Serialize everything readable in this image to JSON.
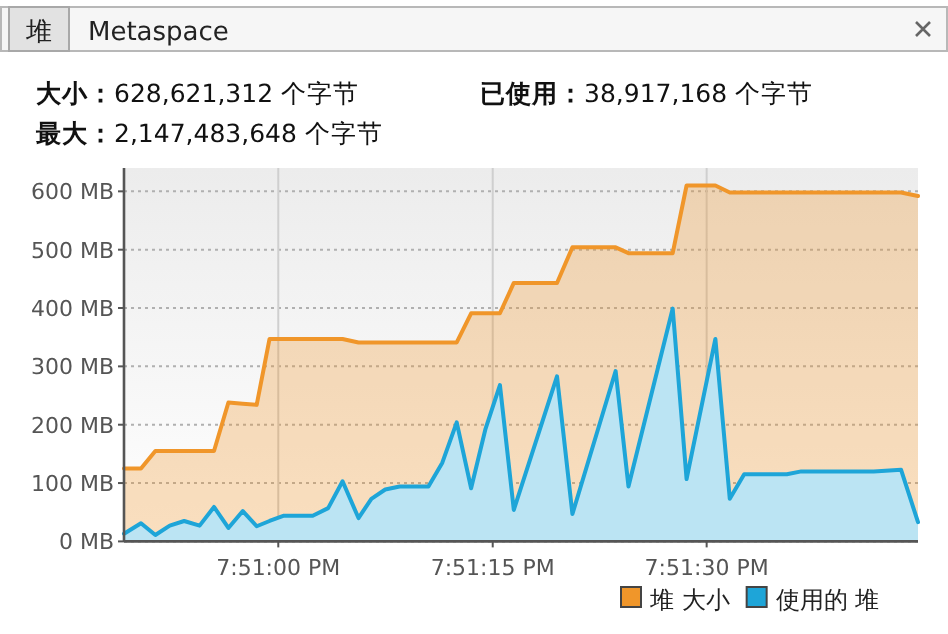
{
  "chart_data": {
    "type": "area",
    "annotations": [
      "堆",
      "Metaspace",
      "大小：628,621,312 个字节",
      "已使用：38,917,168 个字节",
      "最大：2,147,483,648 个字节"
    ],
    "x": [
      19.847,
      19.84733,
      19.84761,
      19.84789,
      19.84817,
      19.84847,
      19.84875,
      19.84903,
      19.84931,
      19.84958,
      19.84983,
      19.85011,
      19.85067,
      19.85097,
      19.85125,
      19.85156,
      19.85181,
      19.85208,
      19.85236,
      19.85292,
      19.85319,
      19.85347,
      19.85375,
      19.85403,
      19.85431,
      19.85458,
      19.85542,
      19.85572,
      19.85656,
      19.85681,
      19.85767,
      19.85794,
      19.8585,
      19.85878,
      19.85906,
      19.85989,
      19.86017,
      19.86158,
      19.86211,
      19.86244
    ],
    "series": [
      {
        "name": "堆 大小",
        "color": "#f0962a",
        "values": [
          125,
          125,
          155,
          155,
          155,
          155,
          155,
          238,
          236,
          234,
          347,
          347,
          347,
          347,
          347,
          341,
          341,
          341,
          341,
          341,
          341,
          341,
          391,
          391,
          391,
          443,
          443,
          504,
          504,
          494,
          494,
          610,
          610,
          598,
          598,
          598,
          598,
          598,
          598,
          592
        ]
      },
      {
        "name": "使用的 堆",
        "color": "#1ea5d8",
        "values": [
          13,
          31,
          11,
          27,
          35,
          27,
          59,
          23,
          52,
          26,
          35,
          44,
          44,
          57,
          103,
          40,
          73,
          89,
          94,
          94,
          135,
          204,
          91,
          193,
          268,
          54,
          283,
          47,
          292,
          94,
          399,
          107,
          347,
          73,
          115,
          115,
          120,
          120,
          123,
          33
        ]
      }
    ],
    "xlim": [
      19.847,
      19.86244
    ],
    "xticks": [
      {
        "value": 19.85,
        "label": "7:51:00 PM"
      },
      {
        "value": 19.85417,
        "label": "7:51:15 PM"
      },
      {
        "value": 19.85833,
        "label": "7:51:30 PM"
      }
    ],
    "ylim": [
      0,
      640
    ],
    "yticks": [
      {
        "value": 0,
        "label": "0 MB"
      },
      {
        "value": 100,
        "label": "100 MB"
      },
      {
        "value": 200,
        "label": "200 MB"
      },
      {
        "value": 300,
        "label": "300 MB"
      },
      {
        "value": 400,
        "label": "400 MB"
      },
      {
        "value": 500,
        "label": "500 MB"
      },
      {
        "value": 600,
        "label": "600 MB"
      }
    ],
    "grid": true,
    "legend": "bottom right"
  }
}
